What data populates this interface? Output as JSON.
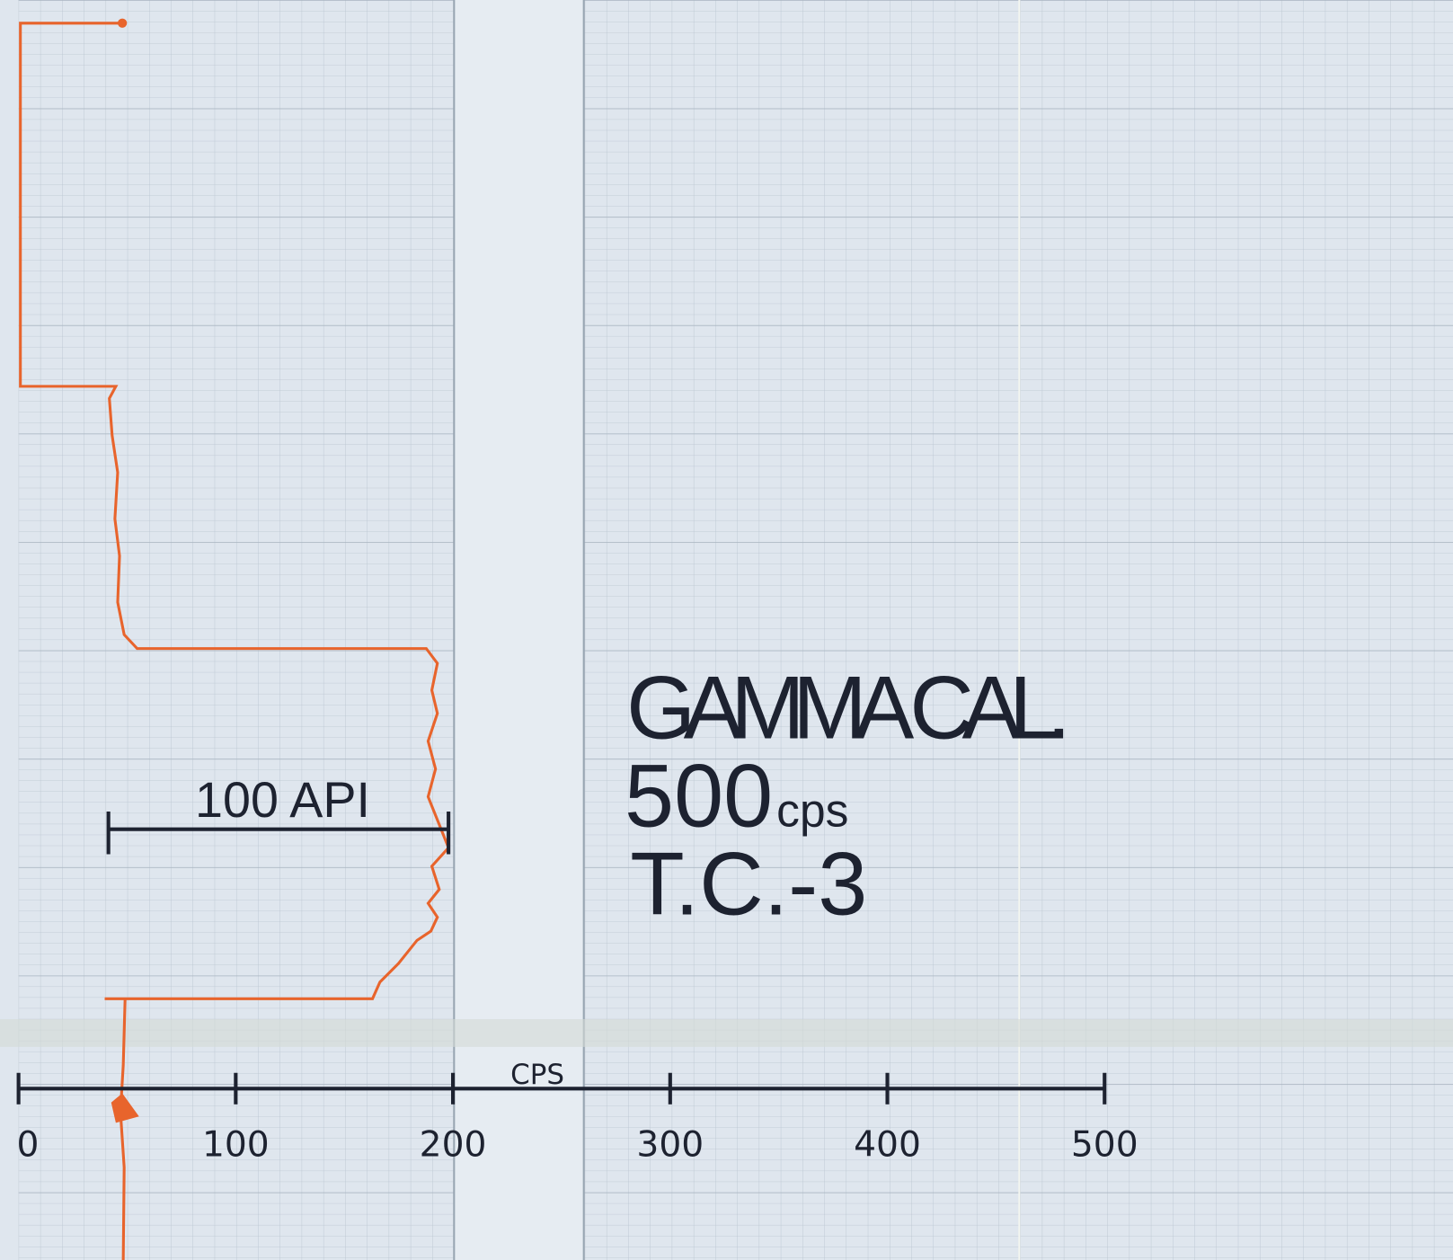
{
  "annotation": {
    "title": "GAMMA CAL.",
    "rate": "500",
    "rate_unit": "cps",
    "tool": "T.C.-3"
  },
  "scale_bar": {
    "label": "100 API"
  },
  "axis": {
    "label": "CPS",
    "ticks": [
      "0",
      "100",
      "200",
      "300",
      "400",
      "500"
    ]
  }
}
